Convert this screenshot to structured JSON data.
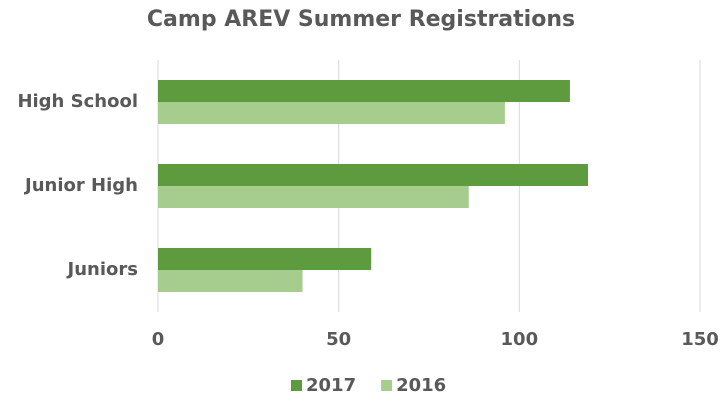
{
  "chart_data": {
    "type": "hbar",
    "title": "Camp AREV Summer Registrations",
    "categories": [
      "High School",
      "Junior High",
      "Juniors"
    ],
    "series": [
      {
        "name": "2017",
        "color": "#5e9b3e",
        "values": [
          114,
          119,
          59
        ]
      },
      {
        "name": "2016",
        "color": "#a6cc8e",
        "values": [
          96,
          86,
          40
        ]
      }
    ],
    "xlim": [
      0,
      150
    ],
    "xticks": [
      0,
      50,
      100,
      150
    ],
    "grid": true,
    "legend": "bottom"
  }
}
